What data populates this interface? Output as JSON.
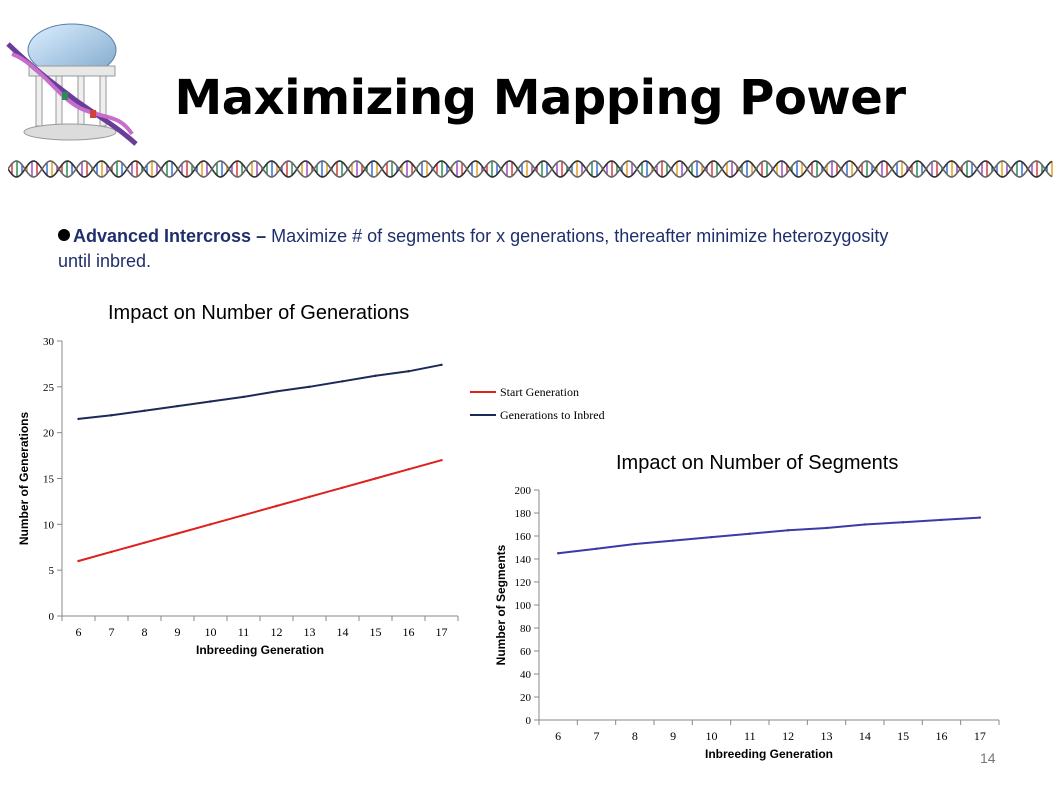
{
  "slide": {
    "title": "Maximizing Mapping Power",
    "bullet_head": "Advanced Intercross –",
    "bullet_text": " Maximize # of segments for x generations, thereafter minimize heterozygosity until inbred.",
    "page_number": "14",
    "logo_icon": "old-well-dna-icon",
    "banner_icon": "dna-strand-icon"
  },
  "chart_data": [
    {
      "type": "line",
      "title": "Impact on Number of Generations",
      "xlabel": "Inbreeding Generation",
      "ylabel": "Number of Generations",
      "categories": [
        "6",
        "7",
        "8",
        "9",
        "10",
        "11",
        "12",
        "13",
        "14",
        "15",
        "16",
        "17"
      ],
      "ylim": [
        0,
        30
      ],
      "yticks": [
        0,
        5,
        10,
        15,
        20,
        25,
        30
      ],
      "grid": false,
      "legend": "right",
      "series": [
        {
          "name": "Start Generation",
          "color": "#e0201c",
          "values": [
            6,
            7,
            8,
            9,
            10,
            11,
            12,
            13,
            14,
            15,
            16,
            17
          ]
        },
        {
          "name": "Generations to Inbred",
          "color": "#1c2a5a",
          "values": [
            21.5,
            21.9,
            22.4,
            22.9,
            23.4,
            23.9,
            24.5,
            25.0,
            25.6,
            26.2,
            26.7,
            27.4
          ]
        }
      ]
    },
    {
      "type": "line",
      "title": "Impact on Number of Segments",
      "xlabel": "Inbreeding Generation",
      "ylabel": "Number of Segments",
      "categories": [
        "6",
        "7",
        "8",
        "9",
        "10",
        "11",
        "12",
        "13",
        "14",
        "15",
        "16",
        "17"
      ],
      "ylim": [
        0,
        200
      ],
      "yticks": [
        0,
        20,
        40,
        60,
        80,
        100,
        120,
        140,
        160,
        180,
        200
      ],
      "grid": false,
      "legend": "none",
      "series": [
        {
          "color": "#3a3aa8",
          "values": [
            145,
            149,
            153,
            156,
            159,
            162,
            165,
            167,
            170,
            172,
            174,
            176
          ]
        }
      ]
    }
  ]
}
